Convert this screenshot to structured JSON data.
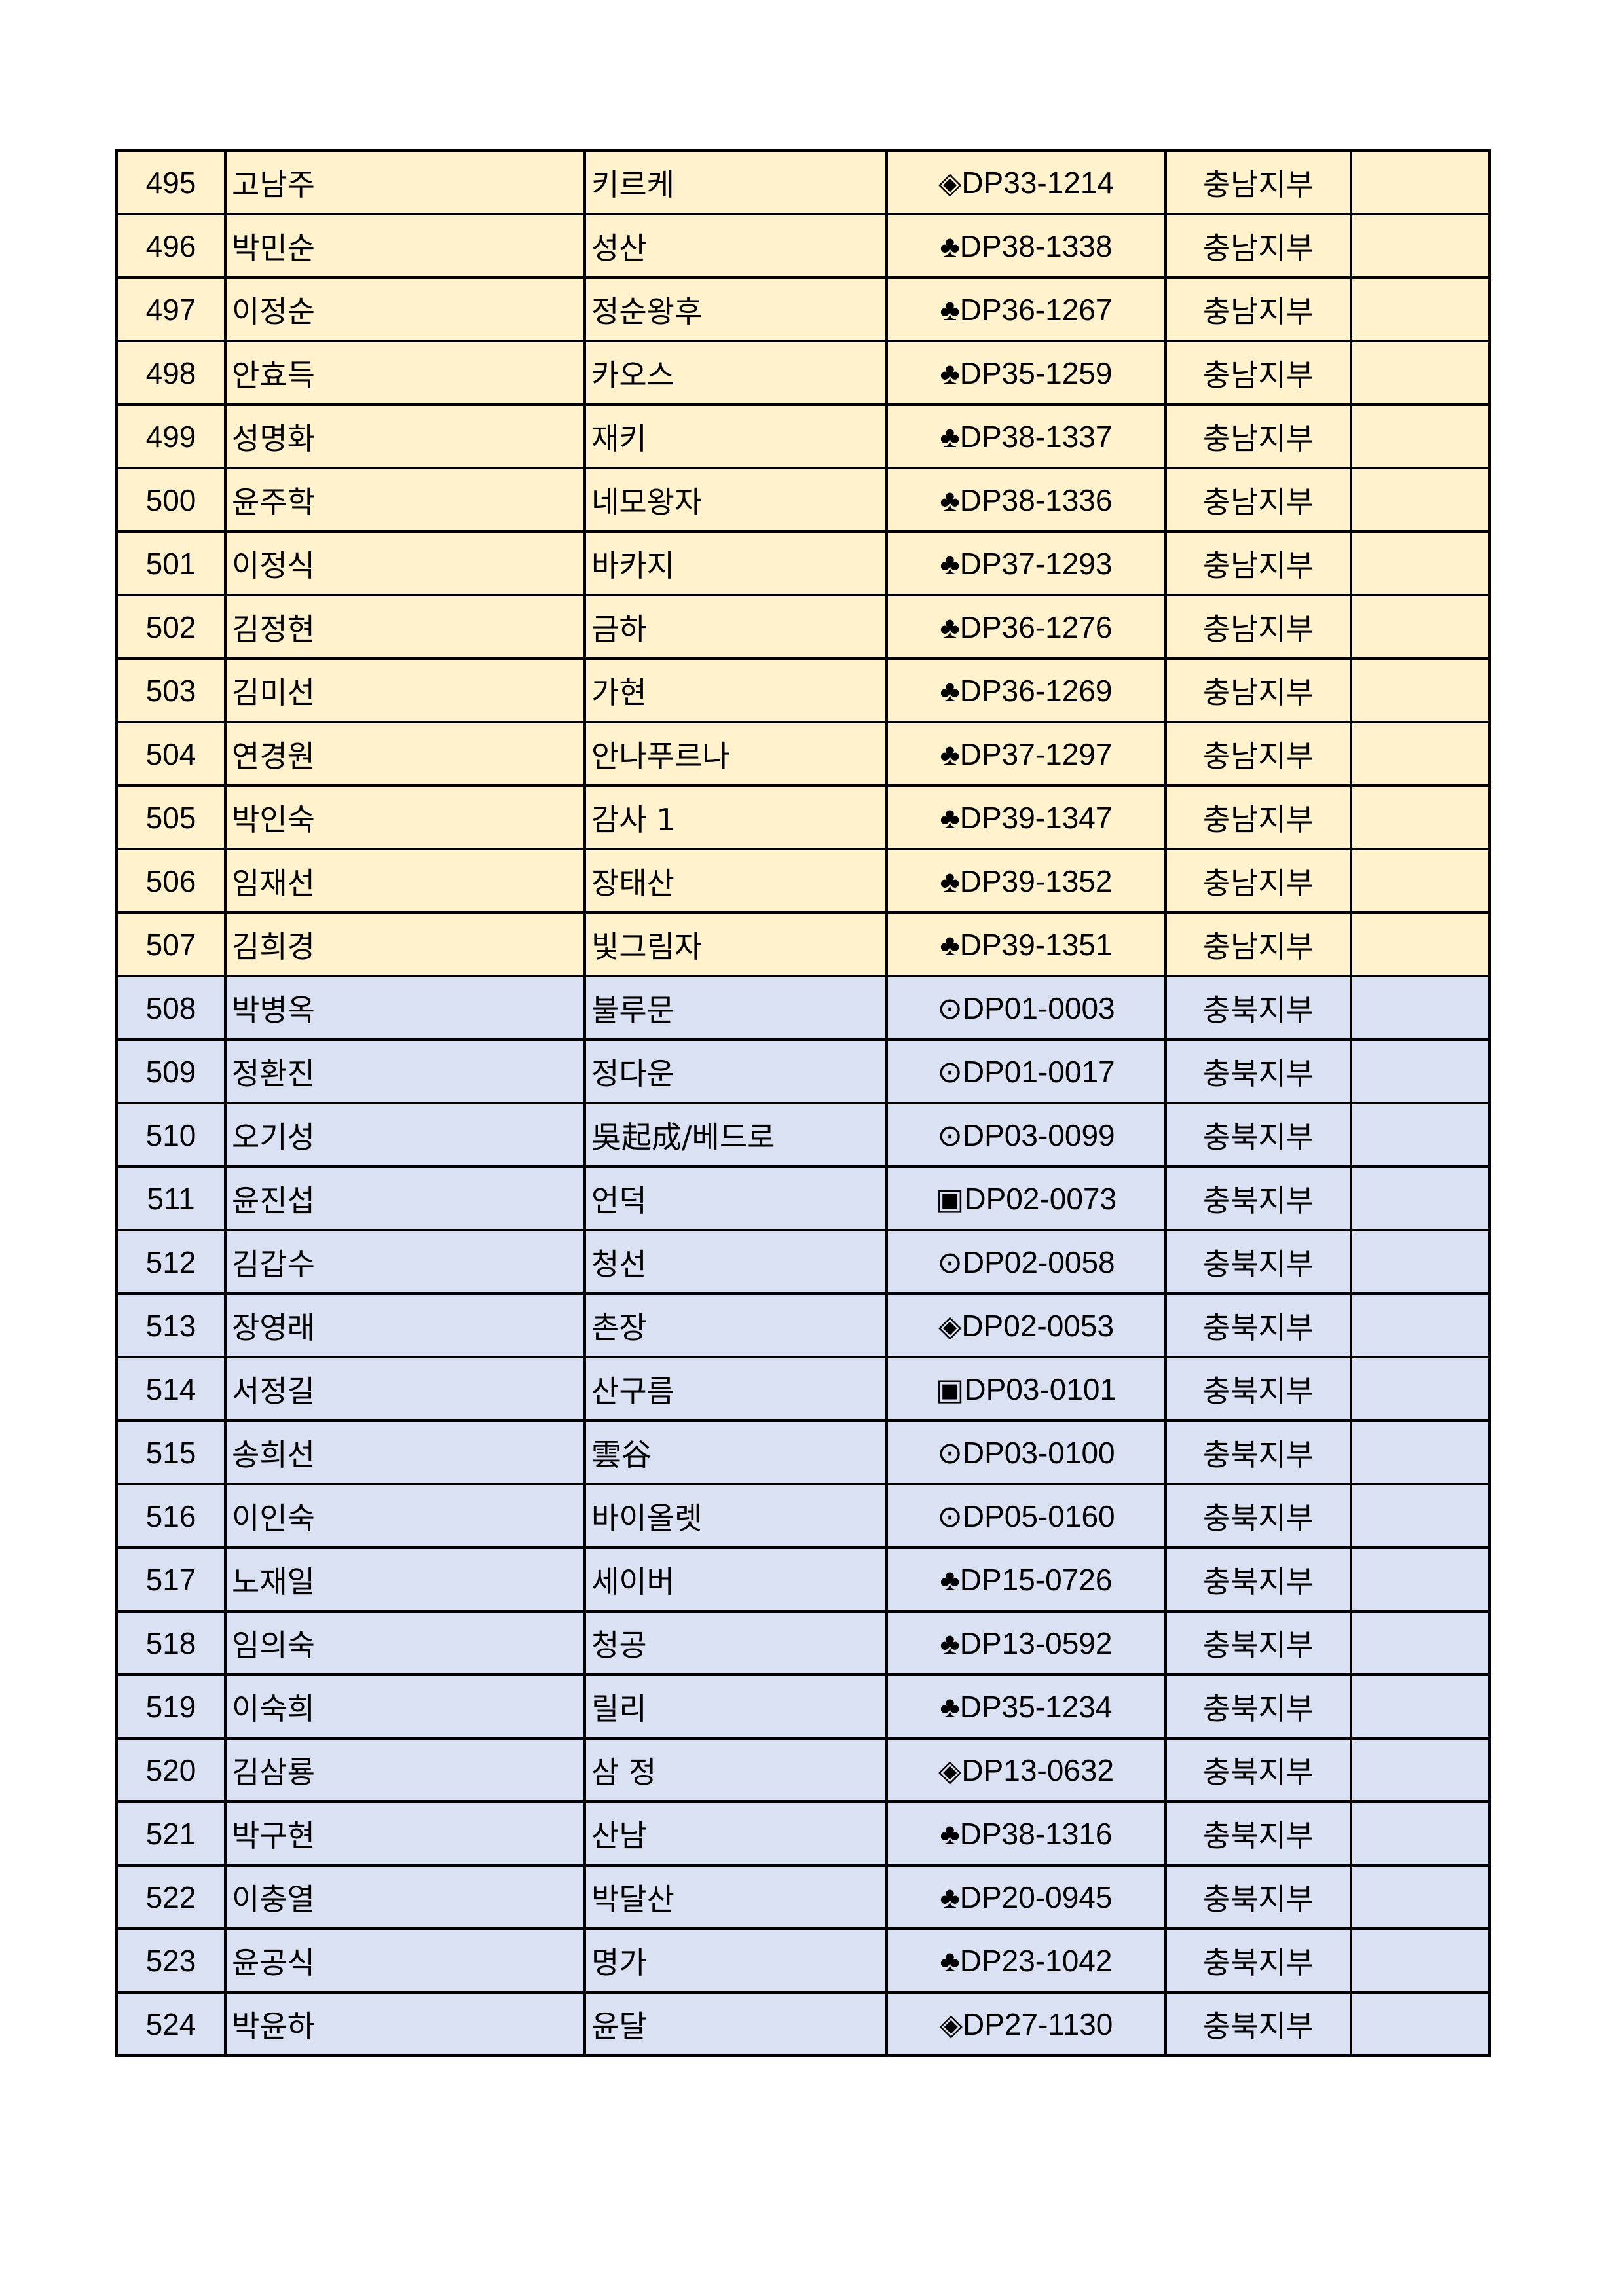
{
  "colors": {
    "chungnam": "#FFF2CC",
    "chungbuk": "#D9E1F2"
  },
  "rows": [
    {
      "no": "495",
      "name": "고남주",
      "alias": "키르케",
      "code": "◈DP33-1214",
      "branch": "충남지부",
      "note": ""
    },
    {
      "no": "496",
      "name": "박민순",
      "alias": "성산",
      "code": "♣DP38-1338",
      "branch": "충남지부",
      "note": ""
    },
    {
      "no": "497",
      "name": "이정순",
      "alias": "정순왕후",
      "code": "♣DP36-1267",
      "branch": "충남지부",
      "note": ""
    },
    {
      "no": "498",
      "name": "안효득",
      "alias": "카오스",
      "code": "♣DP35-1259",
      "branch": "충남지부",
      "note": ""
    },
    {
      "no": "499",
      "name": "성명화",
      "alias": "재키",
      "code": "♣DP38-1337",
      "branch": "충남지부",
      "note": ""
    },
    {
      "no": "500",
      "name": "윤주학",
      "alias": "네모왕자",
      "code": "♣DP38-1336",
      "branch": "충남지부",
      "note": ""
    },
    {
      "no": "501",
      "name": "이정식",
      "alias": "바카지",
      "code": "♣DP37-1293",
      "branch": "충남지부",
      "note": ""
    },
    {
      "no": "502",
      "name": "김정현",
      "alias": "금하",
      "code": "♣DP36-1276",
      "branch": "충남지부",
      "note": ""
    },
    {
      "no": "503",
      "name": "김미선",
      "alias": "가현",
      "code": "♣DP36-1269",
      "branch": "충남지부",
      "note": ""
    },
    {
      "no": "504",
      "name": "연경원",
      "alias": "안나푸르나",
      "code": "♣DP37-1297",
      "branch": "충남지부",
      "note": ""
    },
    {
      "no": "505",
      "name": "박인숙",
      "alias": "감사 1",
      "code": "♣DP39-1347",
      "branch": "충남지부",
      "note": ""
    },
    {
      "no": "506",
      "name": "임재선",
      "alias": "장태산",
      "code": "♣DP39-1352",
      "branch": "충남지부",
      "note": ""
    },
    {
      "no": "507",
      "name": "김희경",
      "alias": "빛그림자",
      "code": "♣DP39-1351",
      "branch": "충남지부",
      "note": ""
    },
    {
      "no": "508",
      "name": "박병옥",
      "alias": "불루문",
      "code": "⊙DP01-0003",
      "branch": "충북지부",
      "note": ""
    },
    {
      "no": "509",
      "name": "정환진",
      "alias": "정다운",
      "code": "⊙DP01-0017",
      "branch": "충북지부",
      "note": ""
    },
    {
      "no": "510",
      "name": "오기성",
      "alias": "吳起成/베드로",
      "code": "⊙DP03-0099",
      "branch": "충북지부",
      "note": ""
    },
    {
      "no": "511",
      "name": "윤진섭",
      "alias": "언덕",
      "code": "▣DP02-0073",
      "branch": "충북지부",
      "note": ""
    },
    {
      "no": "512",
      "name": "김갑수",
      "alias": "청선",
      "code": "⊙DP02-0058",
      "branch": "충북지부",
      "note": ""
    },
    {
      "no": "513",
      "name": "장영래",
      "alias": "촌장",
      "code": "◈DP02-0053",
      "branch": "충북지부",
      "note": ""
    },
    {
      "no": "514",
      "name": "서정길",
      "alias": "산구름",
      "code": "▣DP03-0101",
      "branch": "충북지부",
      "note": ""
    },
    {
      "no": "515",
      "name": "송희선",
      "alias": "雲谷",
      "code": "⊙DP03-0100",
      "branch": "충북지부",
      "note": ""
    },
    {
      "no": "516",
      "name": "이인숙",
      "alias": "바이올렛",
      "code": "⊙DP05-0160",
      "branch": "충북지부",
      "note": ""
    },
    {
      "no": "517",
      "name": "노재일",
      "alias": "세이버",
      "code": "♣DP15-0726",
      "branch": "충북지부",
      "note": ""
    },
    {
      "no": "518",
      "name": "임의숙",
      "alias": "청공",
      "code": "♣DP13-0592",
      "branch": "충북지부",
      "note": ""
    },
    {
      "no": "519",
      "name": "이숙희",
      "alias": "릴리",
      "code": "♣DP35-1234",
      "branch": "충북지부",
      "note": ""
    },
    {
      "no": "520",
      "name": "김삼룡",
      "alias": "삼 정",
      "code": "◈DP13-0632",
      "branch": "충북지부",
      "note": ""
    },
    {
      "no": "521",
      "name": "박구현",
      "alias": "산남",
      "code": "♣DP38-1316",
      "branch": "충북지부",
      "note": ""
    },
    {
      "no": "522",
      "name": "이충열",
      "alias": "박달산",
      "code": "♣DP20-0945",
      "branch": "충북지부",
      "note": ""
    },
    {
      "no": "523",
      "name": "윤공식",
      "alias": "명가",
      "code": "♣DP23-1042",
      "branch": "충북지부",
      "note": ""
    },
    {
      "no": "524",
      "name": "박윤하",
      "alias": "윤달",
      "code": "◈DP27-1130",
      "branch": "충북지부",
      "note": ""
    }
  ]
}
